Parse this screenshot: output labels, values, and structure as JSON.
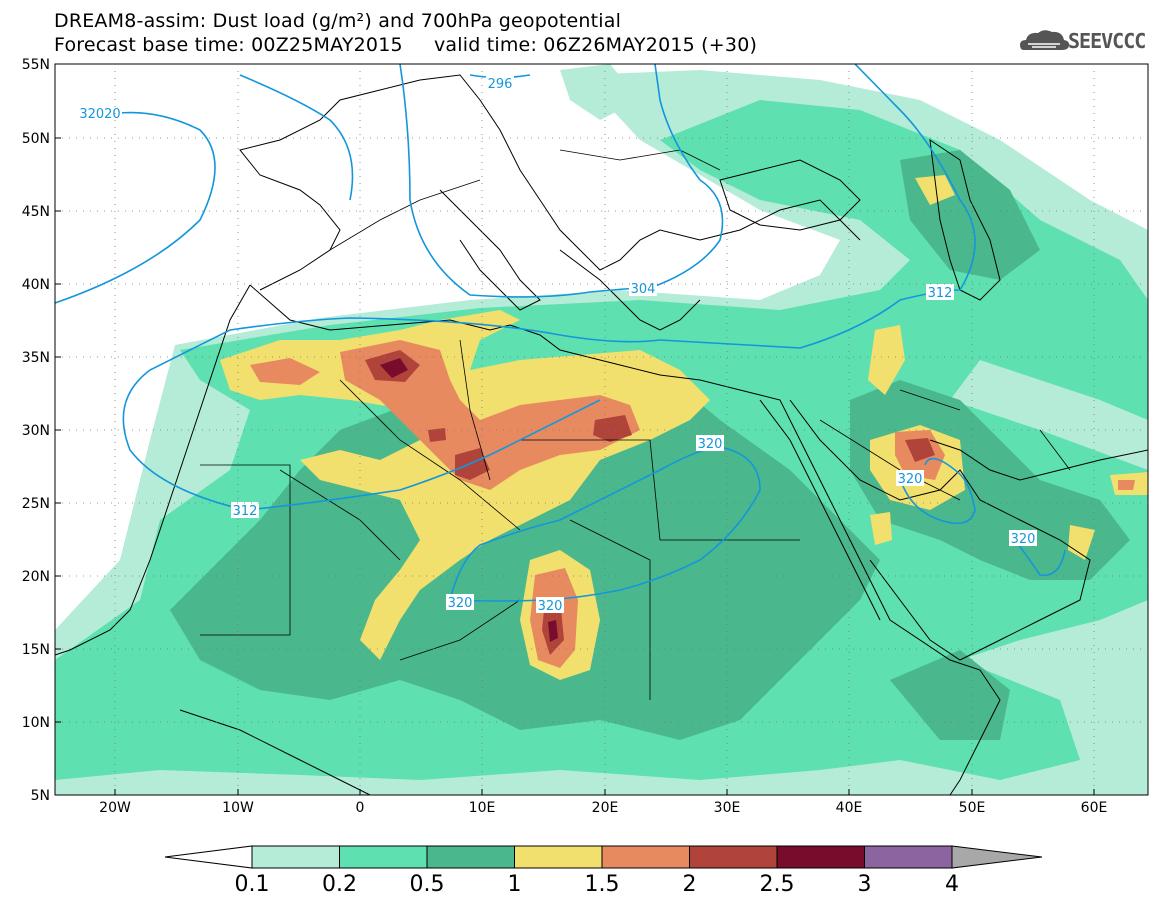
{
  "header": {
    "title_line1": "DREAM8-assim: Dust load (g/m²) and 700hPa geopotential",
    "title_line2": "Forecast base time: 00Z25MAY2015     valid time: 06Z26MAY2015 (+30)"
  },
  "logo": {
    "text": "SEEVCCC"
  },
  "axes": {
    "lat_labels": [
      "55N",
      "50N",
      "45N",
      "40N",
      "35N",
      "30N",
      "25N",
      "20N",
      "15N",
      "10N",
      "5N"
    ],
    "lon_labels": [
      "20W",
      "10W",
      "0",
      "10E",
      "20E",
      "30E",
      "40E",
      "50E",
      "60E"
    ]
  },
  "contour_labels": [
    "32020",
    "296",
    "304",
    "312",
    "312",
    "320",
    "320",
    "320",
    "320",
    "320"
  ],
  "colorbar": {
    "labels": [
      "0.1",
      "0.2",
      "0.5",
      "1",
      "1.5",
      "2",
      "2.5",
      "3",
      "4"
    ],
    "colors": [
      "#b4ecd8",
      "#5ee0b0",
      "#4ab88c",
      "#f2e06e",
      "#e88a60",
      "#b0443a",
      "#780c2c",
      "#8c64a0",
      "#a8a8a8"
    ]
  },
  "colors": {
    "contour": "#1496dc"
  }
}
